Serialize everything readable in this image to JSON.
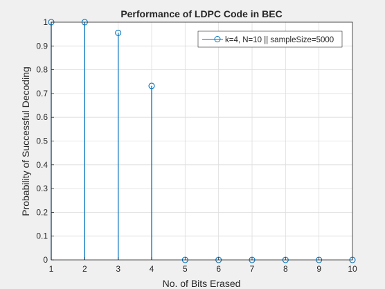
{
  "figure": {
    "background": "#f0f0f0"
  },
  "chart_data": {
    "type": "stem",
    "title": "Performance of LDPC Code in BEC",
    "xlabel": "No. of Bits Erased",
    "ylabel": "Probability of Successful Decoding",
    "xlim": [
      1,
      10
    ],
    "ylim": [
      0,
      1
    ],
    "xticks": [
      "1",
      "2",
      "3",
      "4",
      "5",
      "6",
      "7",
      "8",
      "9",
      "10"
    ],
    "yticks": [
      "0",
      "0.1",
      "0.2",
      "0.3",
      "0.4",
      "0.5",
      "0.6",
      "0.7",
      "0.8",
      "0.9",
      "1"
    ],
    "grid": true,
    "legend_position": "top-right",
    "series": [
      {
        "name": "k=4, N=10 || sampleSize=5000",
        "color": "#0072bd",
        "marker": "circle",
        "x": [
          1,
          2,
          3,
          4,
          5,
          6,
          7,
          8,
          9,
          10
        ],
        "values": [
          1,
          1,
          0.955,
          0.732,
          0,
          0,
          0,
          0,
          0,
          0
        ]
      }
    ]
  }
}
